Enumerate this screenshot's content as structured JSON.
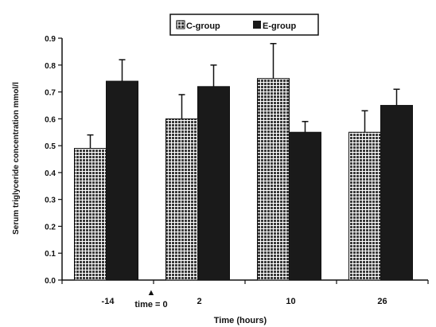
{
  "chart_data": {
    "type": "bar",
    "xlabel": "Time (hours)",
    "ylabel": "Serum triglyceride concentration mmol/l",
    "ylim": [
      0,
      0.9
    ],
    "yticks": [
      "0.0",
      "0.1",
      "0.2",
      "0.3",
      "0.4",
      "0.5",
      "0.6",
      "0.7",
      "0.8",
      "0.9"
    ],
    "grid": false,
    "legend_position": "top-center",
    "categories": [
      "-14",
      "2",
      "10",
      "26"
    ],
    "annotation": {
      "symbol": "▲",
      "text": "time = 0"
    },
    "series": [
      {
        "name": "C-group",
        "pattern": "checkered",
        "color": "#1a1a1a",
        "values": [
          0.49,
          0.6,
          0.75,
          0.55
        ],
        "errors": [
          0.05,
          0.09,
          0.13,
          0.08
        ]
      },
      {
        "name": "E-group",
        "pattern": "solid",
        "color": "#1a1a1a",
        "values": [
          0.74,
          0.72,
          0.55,
          0.65
        ],
        "errors": [
          0.08,
          0.08,
          0.04,
          0.06
        ]
      }
    ]
  }
}
